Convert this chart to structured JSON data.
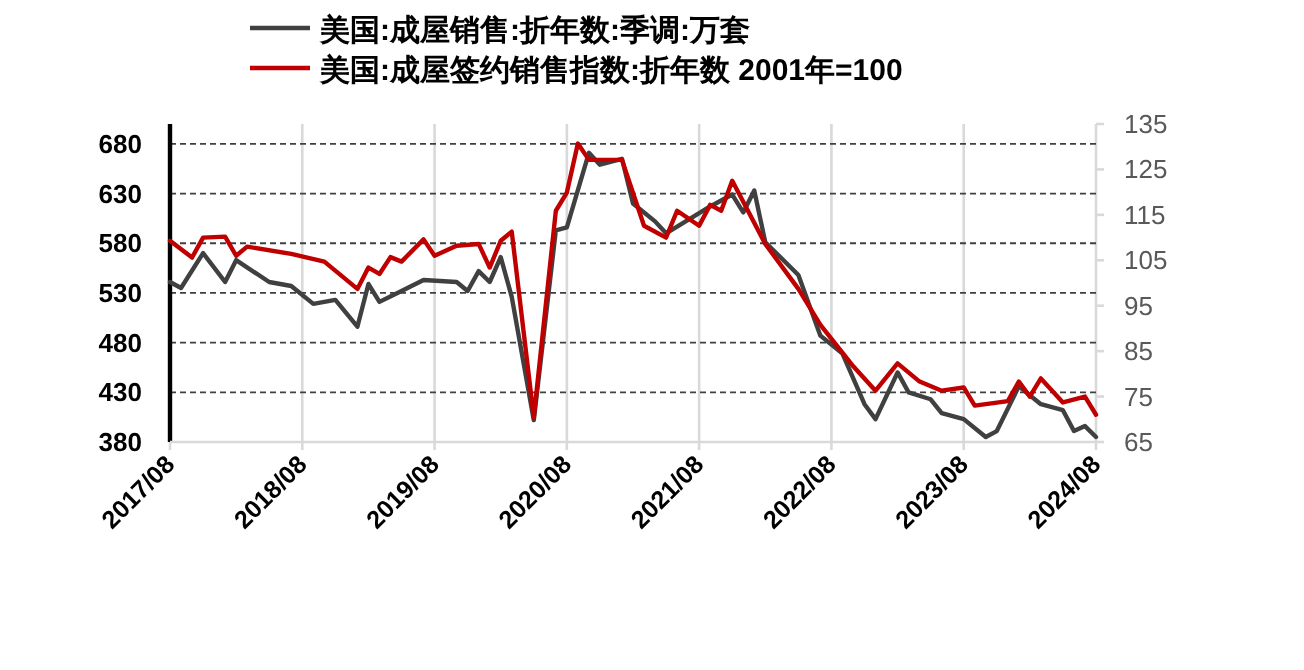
{
  "chart_data": {
    "type": "line",
    "xlim": [
      "2017-08",
      "2024-08"
    ],
    "xticks": [
      {
        "value": "2017-08",
        "label": "2017/08"
      },
      {
        "value": "2018-08",
        "label": "2018/08"
      },
      {
        "value": "2019-08",
        "label": "2019/08"
      },
      {
        "value": "2020-08",
        "label": "2020/08"
      },
      {
        "value": "2021-08",
        "label": "2021/08"
      },
      {
        "value": "2022-08",
        "label": "2022/08"
      },
      {
        "value": "2023-08",
        "label": "2023/08"
      },
      {
        "value": "2024-08",
        "label": "2024/08"
      }
    ],
    "ylim": [
      380,
      700
    ],
    "yticks": [
      380,
      430,
      480,
      530,
      580,
      630,
      680
    ],
    "y2lim": [
      65,
      135
    ],
    "y2ticks": [
      65,
      75,
      85,
      95,
      105,
      115,
      125,
      135
    ],
    "grid": true,
    "legend": "top",
    "line_style": "solid",
    "series": [
      {
        "name": "美国:成屋销售:折年数:季调:万套",
        "color": "#404040",
        "axis": "y",
        "x": [
          "2017-08",
          "2017-09",
          "2017-11",
          "2018-01",
          "2018-02",
          "2018-05",
          "2018-07",
          "2018-09",
          "2018-11",
          "2019-01",
          "2019-02",
          "2019-03",
          "2019-05",
          "2019-07",
          "2019-10",
          "2019-11",
          "2019-12",
          "2020-01",
          "2020-02",
          "2020-03",
          "2020-05",
          "2020-07",
          "2020-08",
          "2020-10",
          "2020-11",
          "2021-01",
          "2021-02",
          "2021-04",
          "2021-05",
          "2021-09",
          "2021-11",
          "2021-12",
          "2022-01",
          "2022-02",
          "2022-05",
          "2022-07",
          "2022-09",
          "2022-11",
          "2022-12",
          "2023-02",
          "2023-03",
          "2023-05",
          "2023-06",
          "2023-08",
          "2023-10",
          "2023-11",
          "2024-01",
          "2024-03",
          "2024-05",
          "2024-06",
          "2024-07",
          "2024-08"
        ],
        "values": [
          541,
          535,
          570,
          541,
          563,
          541,
          537,
          519,
          523,
          496,
          539,
          521,
          532,
          543,
          541,
          532,
          552,
          541,
          566,
          526,
          402,
          593,
          596,
          671,
          659,
          665,
          620,
          602,
          590,
          617,
          629,
          611,
          633,
          581,
          548,
          487,
          469,
          418,
          403,
          450,
          430,
          423,
          409,
          403,
          385,
          391,
          436,
          418,
          412,
          391,
          396,
          385
        ]
      },
      {
        "name": "美国:成屋签约销售指数:折年数 2001年=100",
        "color": "#c00000",
        "axis": "y2",
        "x": [
          "2017-08",
          "2017-10",
          "2017-11",
          "2018-01",
          "2018-02",
          "2018-03",
          "2018-07",
          "2018-10",
          "2019-01",
          "2019-02",
          "2019-03",
          "2019-04",
          "2019-05",
          "2019-07",
          "2019-08",
          "2019-10",
          "2019-12",
          "2020-01",
          "2020-02",
          "2020-03",
          "2020-05",
          "2020-07",
          "2020-08",
          "2020-09",
          "2020-10",
          "2021-01",
          "2021-03",
          "2021-05",
          "2021-06",
          "2021-08",
          "2021-09",
          "2021-10",
          "2021-11",
          "2021-12",
          "2022-02",
          "2022-05",
          "2022-07",
          "2022-10",
          "2022-12",
          "2023-02",
          "2023-04",
          "2023-06",
          "2023-08",
          "2023-09",
          "2023-12",
          "2024-01",
          "2024-02",
          "2024-03",
          "2024-05",
          "2024-07",
          "2024-08"
        ],
        "values": [
          109.3,
          105.6,
          110,
          110.2,
          106,
          108,
          106.4,
          104.7,
          98.7,
          103.4,
          102,
          105.7,
          104.7,
          109.6,
          106,
          108.2,
          108.6,
          103.4,
          109.3,
          111.3,
          70.4,
          115.9,
          119.9,
          130.7,
          127.1,
          127.1,
          112.6,
          110,
          115.9,
          112.6,
          117.2,
          115.9,
          122.5,
          117.9,
          108.6,
          98.7,
          90.8,
          81.6,
          76.3,
          82.3,
          78.3,
          76.3,
          77,
          73,
          74,
          78.3,
          75,
          79,
          73.7,
          75,
          71
        ]
      }
    ]
  }
}
